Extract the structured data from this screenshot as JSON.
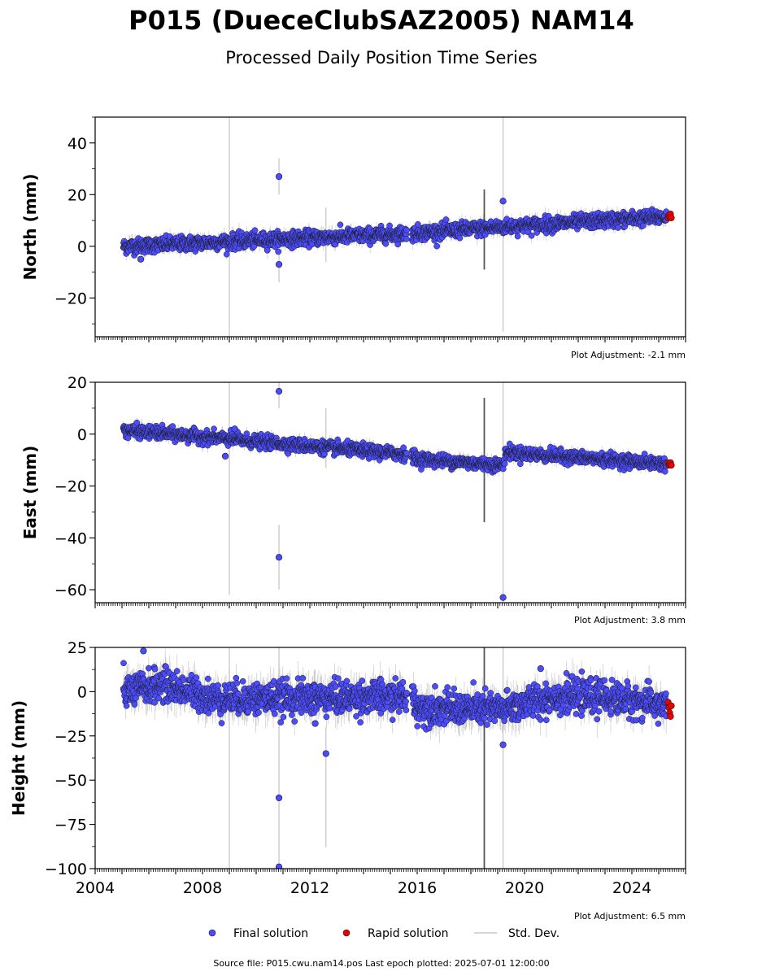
{
  "title": "P015 (DueceClubSAZ2005) NAM14",
  "subtitle": "Processed Daily Position Time Series",
  "source_note": "Source file: P015.cwu.nam14.pos  Last epoch plotted: 2025-07-01 12:00:00",
  "legend": {
    "final": "Final solution",
    "rapid": "Rapid solution",
    "stddev": "Std. Dev."
  },
  "colors": {
    "final": "#4c4cff",
    "final_edge": "#1a1a1a",
    "rapid": "#ee0000",
    "stddev": "#b0b0b0"
  },
  "chart_data": [
    {
      "type": "scatter",
      "ylabel": "North (mm)",
      "ylim": [
        -35,
        50
      ],
      "xlim": [
        2004,
        2026
      ],
      "yticks": [
        -20,
        0,
        20,
        40
      ],
      "yticklabels": [
        "−20",
        "0",
        "20",
        "40"
      ],
      "xticks": [
        2004,
        2008,
        2012,
        2016,
        2020,
        2024
      ],
      "xticklabels": [
        "",
        "",
        "",
        "",
        "",
        ""
      ],
      "adjustment": "Plot Adjustment: -2.1 mm",
      "trend": [
        [
          2005.1,
          0
        ],
        [
          2015.8,
          5
        ],
        [
          2019.2,
          7.5
        ],
        [
          2025.3,
          11.5
        ]
      ],
      "scatter_sd": 1.4,
      "outliers": [
        [
          2005.7,
          -5
        ],
        [
          2010.85,
          27
        ],
        [
          2010.85,
          -7
        ],
        [
          2019.2,
          17.5
        ]
      ],
      "std_lines": [
        [
          2009.0,
          -35,
          50
        ],
        [
          2010.85,
          20,
          34
        ],
        [
          2010.85,
          -14,
          -2
        ],
        [
          2012.6,
          -6,
          15
        ],
        [
          2018.5,
          -9,
          22
        ],
        [
          2019.2,
          -33,
          50
        ]
      ],
      "rapid_points": [
        [
          2025.35,
          11
        ],
        [
          2025.38,
          12
        ],
        [
          2025.41,
          11.5
        ],
        [
          2025.44,
          12.5
        ],
        [
          2025.47,
          11
        ]
      ]
    },
    {
      "type": "scatter",
      "ylabel": "East (mm)",
      "ylim": [
        -65,
        20
      ],
      "xlim": [
        2004,
        2026
      ],
      "yticks": [
        -60,
        -40,
        -20,
        0,
        20
      ],
      "yticklabels": [
        "−60",
        "−40",
        "−20",
        "0",
        "20"
      ],
      "xticks": [
        2004,
        2008,
        2012,
        2016,
        2020,
        2024
      ],
      "xticklabels": [
        "",
        "",
        "",
        "",
        "",
        ""
      ],
      "adjustment": "Plot Adjustment: 3.8 mm",
      "trend": [
        [
          2005.1,
          1.5
        ],
        [
          2015.8,
          -8
        ],
        [
          2016.0,
          -9.5
        ],
        [
          2019.2,
          -12
        ],
        [
          2019.3,
          -7
        ],
        [
          2025.3,
          -11.5
        ]
      ],
      "scatter_sd": 1.2,
      "outliers": [
        [
          2008.85,
          -8.5
        ],
        [
          2009.2,
          2
        ],
        [
          2010.85,
          16.5
        ],
        [
          2010.85,
          -47.5
        ],
        [
          2019.2,
          -63
        ]
      ],
      "std_lines": [
        [
          2009.0,
          -62,
          20
        ],
        [
          2010.85,
          10,
          20
        ],
        [
          2010.85,
          -60,
          -35
        ],
        [
          2012.6,
          -13,
          10
        ],
        [
          2018.5,
          -34,
          14
        ],
        [
          2019.2,
          -65,
          20
        ]
      ],
      "rapid_points": [
        [
          2025.35,
          -11
        ],
        [
          2025.38,
          -12
        ],
        [
          2025.41,
          -11.5
        ],
        [
          2025.44,
          -11
        ],
        [
          2025.47,
          -12
        ]
      ]
    },
    {
      "type": "scatter",
      "ylabel": "Height (mm)",
      "ylim": [
        -100,
        25
      ],
      "xlim": [
        2004,
        2026
      ],
      "yticks": [
        -100,
        -75,
        -50,
        -25,
        0,
        25
      ],
      "yticklabels": [
        "−100",
        "−75",
        "−50",
        "−25",
        "0",
        "25"
      ],
      "xticks": [
        2004,
        2008,
        2012,
        2016,
        2020,
        2024
      ],
      "xticklabels": [
        "2004",
        "2008",
        "2012",
        "2016",
        "2020",
        "2024"
      ],
      "adjustment": "Plot Adjustment: 6.5 mm",
      "trend": [
        [
          2005.1,
          0
        ],
        [
          2006.5,
          4
        ],
        [
          2008.5,
          -4
        ],
        [
          2015.8,
          -3
        ],
        [
          2016.0,
          -9
        ],
        [
          2019.2,
          -10
        ],
        [
          2021,
          -3
        ],
        [
          2023,
          -3
        ],
        [
          2025.3,
          -8
        ]
      ],
      "scatter_sd": 4.5,
      "outliers": [
        [
          2005.8,
          23
        ],
        [
          2010.85,
          -60
        ],
        [
          2010.85,
          -99
        ],
        [
          2012.6,
          -35
        ],
        [
          2012.2,
          -18
        ],
        [
          2019.2,
          -30
        ],
        [
          2020.6,
          13
        ]
      ],
      "std_lines": [
        [
          2009.0,
          -100,
          25
        ],
        [
          2010.85,
          -100,
          25
        ],
        [
          2012.6,
          -88,
          -20
        ],
        [
          2018.5,
          -100,
          25
        ],
        [
          2019.2,
          -100,
          25
        ]
      ],
      "rapid_points": [
        [
          2025.35,
          -6
        ],
        [
          2025.38,
          -9
        ],
        [
          2025.41,
          -12
        ],
        [
          2025.44,
          -14
        ],
        [
          2025.47,
          -8
        ]
      ]
    }
  ]
}
